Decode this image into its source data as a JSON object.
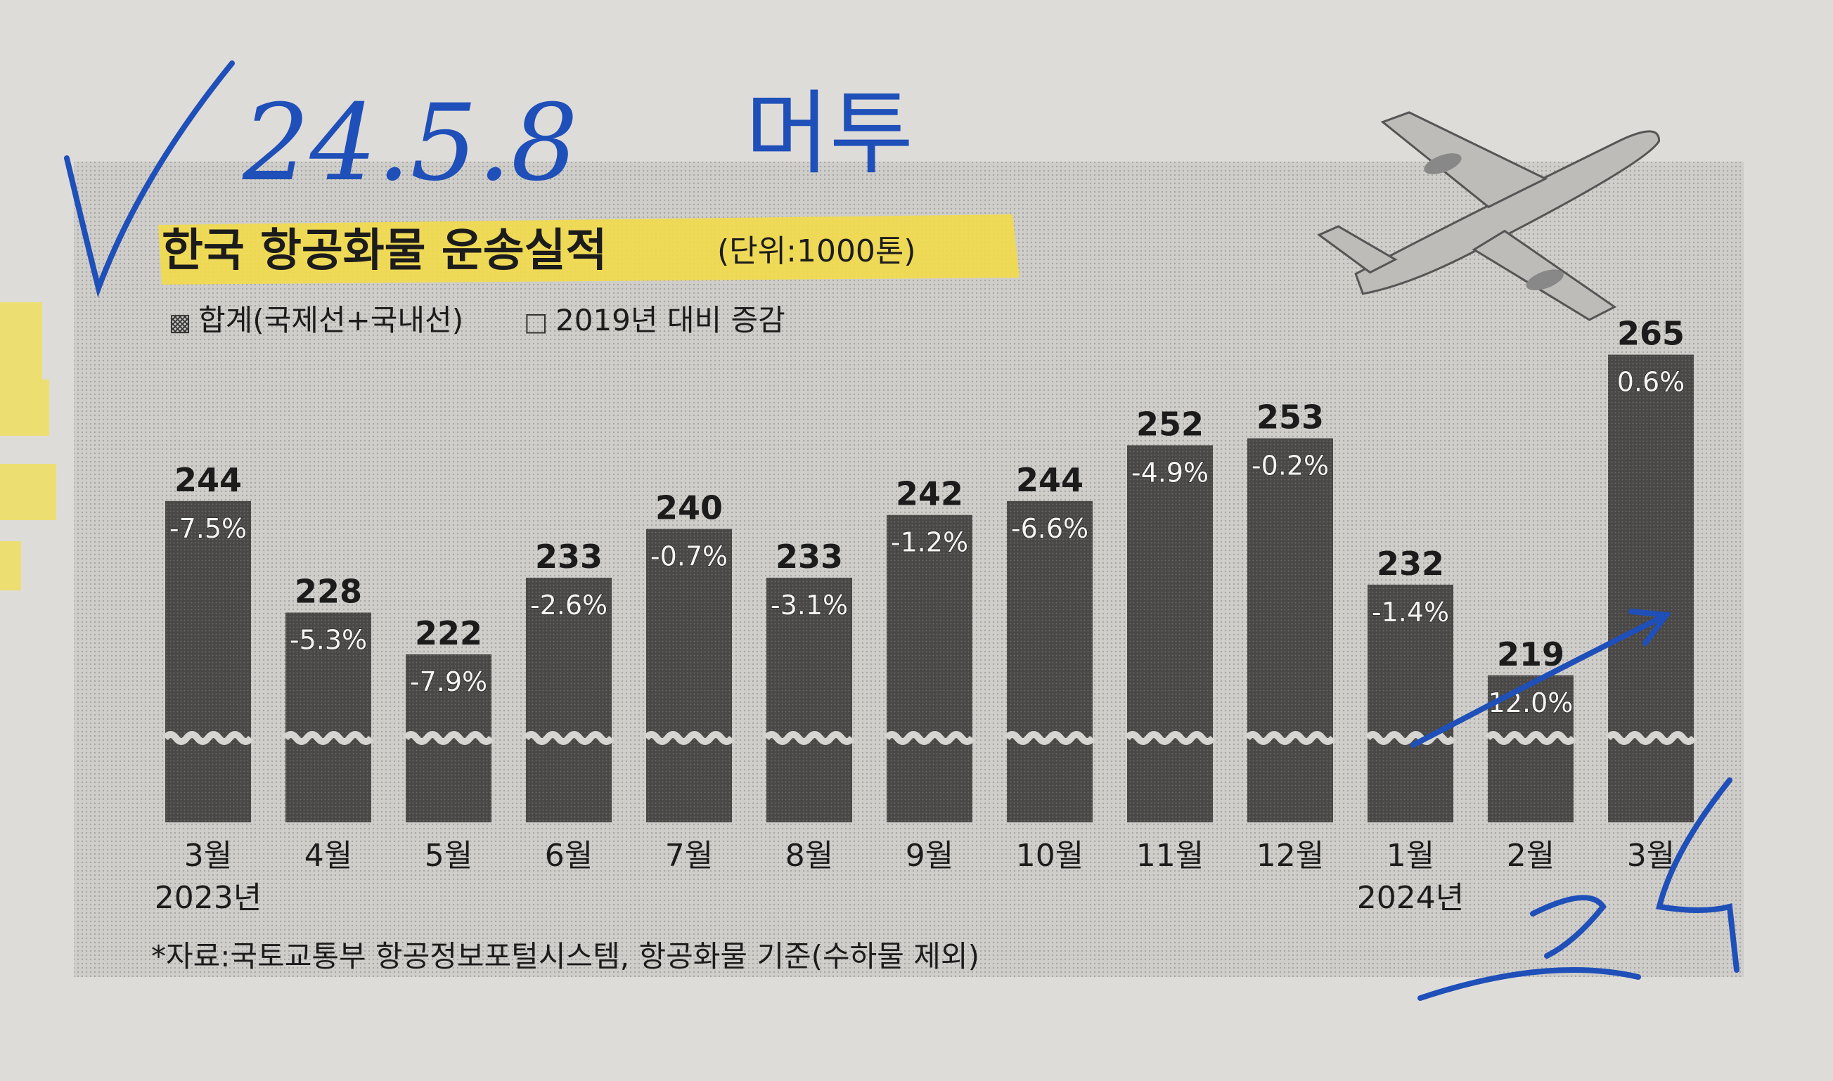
{
  "annotations": {
    "check_mark": "✓",
    "date": "24.5.8",
    "word": "머투",
    "note": "3d"
  },
  "chart_data": {
    "type": "bar",
    "title": "한국 항공화물 운송실적",
    "unit": "(단위:1000톤)",
    "legend": [
      {
        "marker": "▩",
        "label": "합계(국제선+국내선)"
      },
      {
        "marker": "□",
        "label": "2019년 대비 증감"
      }
    ],
    "categories": [
      "3월",
      "4월",
      "5월",
      "6월",
      "7월",
      "8월",
      "9월",
      "10월",
      "11월",
      "12월",
      "1월",
      "2월",
      "3월"
    ],
    "year_labels": [
      {
        "index": 0,
        "label": "2023년"
      },
      {
        "index": 10,
        "label": "2024년"
      }
    ],
    "values": [
      244,
      228,
      222,
      233,
      240,
      233,
      242,
      244,
      252,
      253,
      232,
      219,
      265
    ],
    "change_labels": [
      "-7.5%",
      "-5.3%",
      "-7.9%",
      "-2.6%",
      "-0.7%",
      "-3.1%",
      "-1.2%",
      "-6.6%",
      "-4.9%",
      "-0.2%",
      "-1.4%",
      "12.0%",
      "0.6%"
    ],
    "axis_break": true,
    "source": "*자료:국토교통부 항공정보포털시스템, 항공화물 기준(수하물 제외)",
    "colors": {
      "bar": "#4a4846",
      "panel": "#c9c8c5",
      "highlight": "#f2dc4a",
      "ink": "#1f4fb8",
      "label": "#1c1c1c",
      "change_label": "#f4f4f4"
    }
  }
}
